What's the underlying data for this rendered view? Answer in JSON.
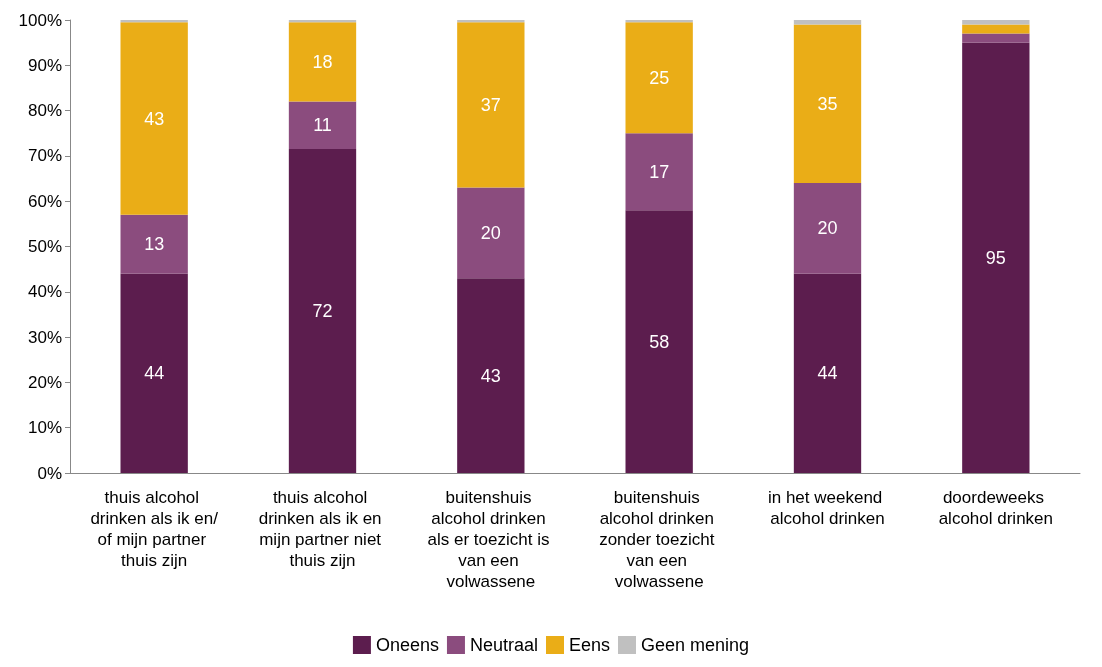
{
  "chart_data": {
    "type": "bar",
    "stacked": true,
    "categories": [
      "thuis alcohol drinken als ik en/of mijn partner thuis zijn",
      "thuis alcohol drinken als ik en mijn partner niet thuis zijn",
      "buitenshuis alcohol drinken als er toezicht is van een volwassene",
      "buitenshuis alcohol drinken zonder toezicht van een volwassene",
      "in het weekend alcohol drinken",
      "doordeweeks alcohol drinken"
    ],
    "series": [
      {
        "name": "Oneens",
        "color": "#5c1d4e",
        "values": [
          44,
          71.5,
          43,
          58,
          44,
          95
        ],
        "value_labels": [
          "44",
          "72",
          "43",
          "58",
          "44",
          "95"
        ]
      },
      {
        "name": "Neutraal",
        "color": "#8b4c7e",
        "values": [
          13,
          10.5,
          20,
          17,
          20,
          2
        ],
        "value_labels": [
          "13",
          "11",
          "20",
          "17",
          "20",
          null
        ]
      },
      {
        "name": "Eens",
        "color": "#eaad17",
        "values": [
          42.5,
          17.5,
          36.5,
          24.5,
          35,
          2
        ],
        "value_labels": [
          "43",
          "18",
          "37",
          "25",
          "35",
          null
        ]
      },
      {
        "name": "Geen mening",
        "color": "#c0c0c0",
        "values": [
          0.5,
          0.5,
          0.5,
          0.5,
          1,
          1
        ],
        "value_labels": [
          null,
          null,
          null,
          null,
          null,
          null
        ]
      }
    ],
    "ylim": [
      0,
      100
    ],
    "yticks": [
      {
        "value": 0,
        "label": "0%"
      },
      {
        "value": 10,
        "label": "10%"
      },
      {
        "value": 20,
        "label": "20%"
      },
      {
        "value": 30,
        "label": "30%"
      },
      {
        "value": 40,
        "label": "40%"
      },
      {
        "value": 50,
        "label": "50%"
      },
      {
        "value": 60,
        "label": "60%"
      },
      {
        "value": 70,
        "label": "70%"
      },
      {
        "value": 80,
        "label": "80%"
      },
      {
        "value": 90,
        "label": "90%"
      },
      {
        "value": 100,
        "label": "100%"
      }
    ],
    "grid": false,
    "legend": "bottom"
  }
}
